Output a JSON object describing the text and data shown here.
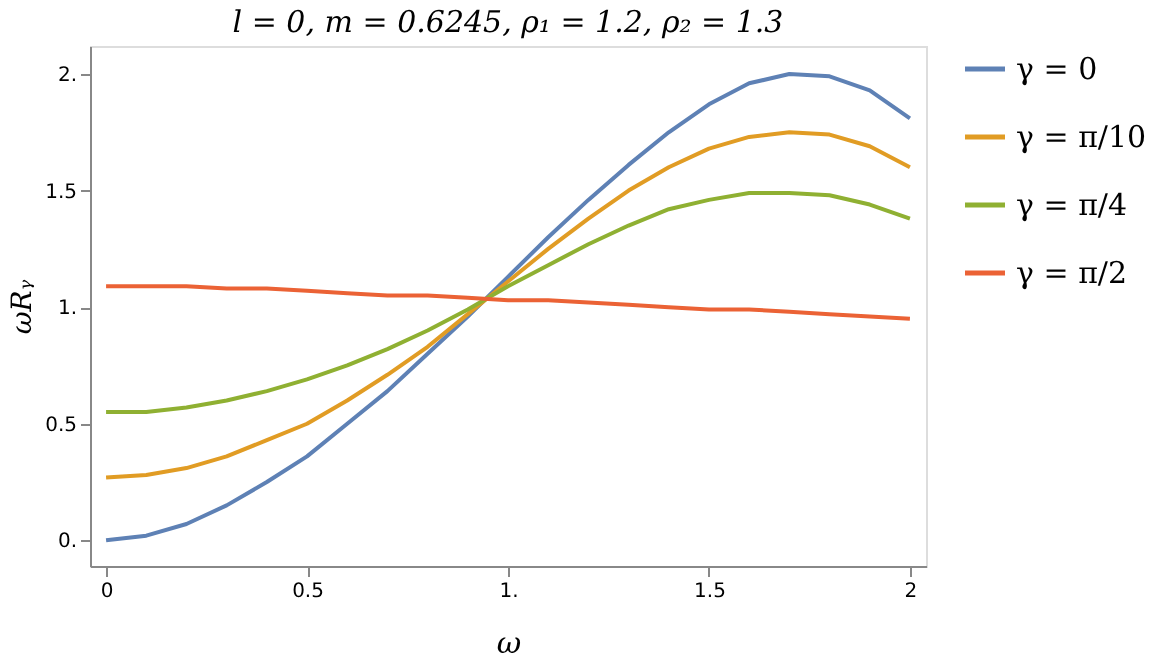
{
  "chart_data": {
    "type": "line",
    "title": "l = 0, m = 0.6245, ρ₁ = 1.2, ρ₂ = 1.3",
    "xlabel": "ω",
    "ylabel": "ωRᵧ",
    "x": [
      0,
      0.1,
      0.2,
      0.3,
      0.4,
      0.5,
      0.6,
      0.7,
      0.8,
      0.9,
      1.0,
      1.1,
      1.2,
      1.3,
      1.4,
      1.5,
      1.6,
      1.7,
      1.8,
      1.9,
      2.0
    ],
    "series": [
      {
        "name": "γ = 0",
        "color": "#5e81b5",
        "values": [
          0,
          0.02,
          0.07,
          0.15,
          0.25,
          0.36,
          0.5,
          0.64,
          0.8,
          0.96,
          1.13,
          1.3,
          1.46,
          1.61,
          1.75,
          1.87,
          1.96,
          2.0,
          1.99,
          1.93,
          1.81
        ]
      },
      {
        "name": "γ = π/10",
        "color": "#e19c24",
        "values": [
          0.27,
          0.28,
          0.31,
          0.36,
          0.43,
          0.5,
          0.6,
          0.71,
          0.83,
          0.97,
          1.11,
          1.25,
          1.38,
          1.5,
          1.6,
          1.68,
          1.73,
          1.75,
          1.74,
          1.69,
          1.6
        ]
      },
      {
        "name": "γ = π/4",
        "color": "#8fb032",
        "values": [
          0.55,
          0.55,
          0.57,
          0.6,
          0.64,
          0.69,
          0.75,
          0.82,
          0.9,
          0.99,
          1.09,
          1.18,
          1.27,
          1.35,
          1.42,
          1.46,
          1.49,
          1.49,
          1.48,
          1.44,
          1.38
        ]
      },
      {
        "name": "γ = π/2",
        "color": "#eb6235",
        "values": [
          1.09,
          1.09,
          1.09,
          1.08,
          1.08,
          1.07,
          1.06,
          1.05,
          1.05,
          1.04,
          1.03,
          1.03,
          1.02,
          1.01,
          1.0,
          0.99,
          0.99,
          0.98,
          0.97,
          0.96,
          0.95
        ]
      }
    ],
    "xlim": [
      -0.04,
      2.04
    ],
    "ylim": [
      -0.11,
      2.12
    ],
    "xticks": [
      0,
      0.5,
      {
        "value": 1,
        "label": "1."
      },
      1.5,
      2
    ],
    "yticks": [
      {
        "value": 0,
        "label": "0."
      },
      0.5,
      {
        "value": 1,
        "label": "1."
      },
      1.5,
      {
        "value": 2,
        "label": "2."
      }
    ],
    "grid": false,
    "legend": "right",
    "marker": "none",
    "line_style": "solid"
  }
}
